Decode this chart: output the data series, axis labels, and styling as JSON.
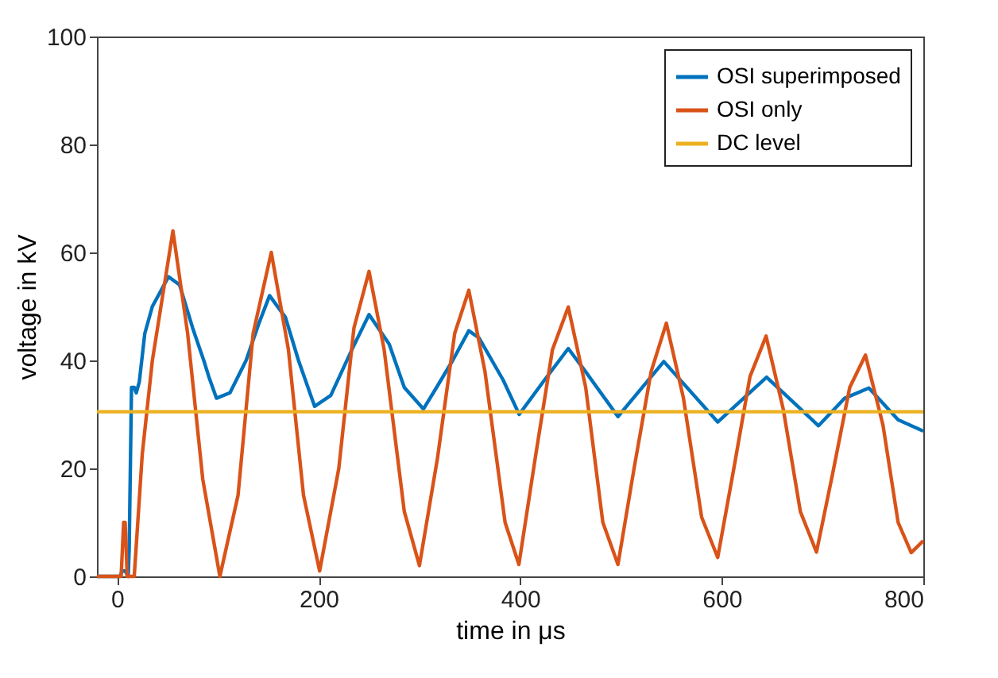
{
  "chart_data": {
    "type": "line",
    "xlabel": "time in μs",
    "ylabel": "voltage in kV",
    "xlim": [
      -20,
      800
    ],
    "ylim": [
      0,
      100
    ],
    "xticks": [
      0,
      200,
      400,
      600,
      800
    ],
    "yticks": [
      0,
      20,
      40,
      60,
      80,
      100
    ],
    "legend": "top right",
    "grid": false,
    "series": [
      {
        "name": "OSI superimposed",
        "color": "#0072bd",
        "x": [
          -20,
          3,
          5,
          8,
          11,
          12,
          14.3,
          17,
          19,
          22,
          27.5,
          35,
          51,
          62,
          75,
          86,
          91,
          98.6,
          112,
          128,
          141,
          151.3,
          167,
          180,
          196,
          212,
          233,
          250,
          270,
          285,
          304,
          317,
          333,
          349,
          359,
          383,
          399,
          422.6,
          447.7,
          464.6,
          497,
          542.5,
          596,
          644.5,
          696,
          722,
          746,
          775,
          800
        ],
        "values": [
          0,
          0,
          1,
          1,
          0,
          5,
          35,
          35,
          34,
          36,
          45,
          50,
          55.5,
          54,
          46,
          40,
          37,
          33,
          34,
          40,
          47,
          52,
          48,
          40,
          31.5,
          33.5,
          42,
          48.5,
          43,
          35,
          31,
          35,
          40,
          45.5,
          44.2,
          36.4,
          30,
          36,
          42.2,
          38,
          29.6,
          39.8,
          28.6,
          36.9,
          27.9,
          33,
          34.9,
          29,
          26.9
        ]
      },
      {
        "name": "OSI only",
        "color": "#d95319",
        "x": [
          -20,
          4,
          6.5,
          8,
          10,
          17,
          25,
          35,
          55.4,
          70,
          85,
          102,
          120,
          135,
          153,
          170,
          185,
          201,
          220,
          235,
          250,
          265,
          285,
          300,
          318,
          335,
          349,
          365,
          385,
          398.7,
          415,
          432,
          447.7,
          465,
          482,
          497,
          513,
          530,
          545,
          562,
          580,
          596,
          612,
          628,
          644,
          661,
          678,
          694,
          710,
          727,
          742.6,
          760,
          775,
          788,
          800
        ],
        "values": [
          0,
          0,
          10,
          10,
          0,
          0,
          22.7,
          40,
          64,
          45,
          18,
          0,
          15,
          45,
          60,
          42,
          15,
          1,
          20,
          46,
          56.5,
          42,
          12,
          2,
          22,
          45,
          53,
          38,
          10,
          2.2,
          22,
          42,
          49.9,
          35,
          10,
          2.2,
          20,
          38,
          46.9,
          33,
          11,
          3.5,
          20,
          37,
          44.5,
          31,
          12,
          4.5,
          19,
          35,
          41,
          28,
          10,
          4.4,
          6.6
        ]
      },
      {
        "name": "DC level",
        "color": "#edb120",
        "x": [
          -20,
          800
        ],
        "values": [
          30.5,
          30.5
        ]
      }
    ]
  }
}
